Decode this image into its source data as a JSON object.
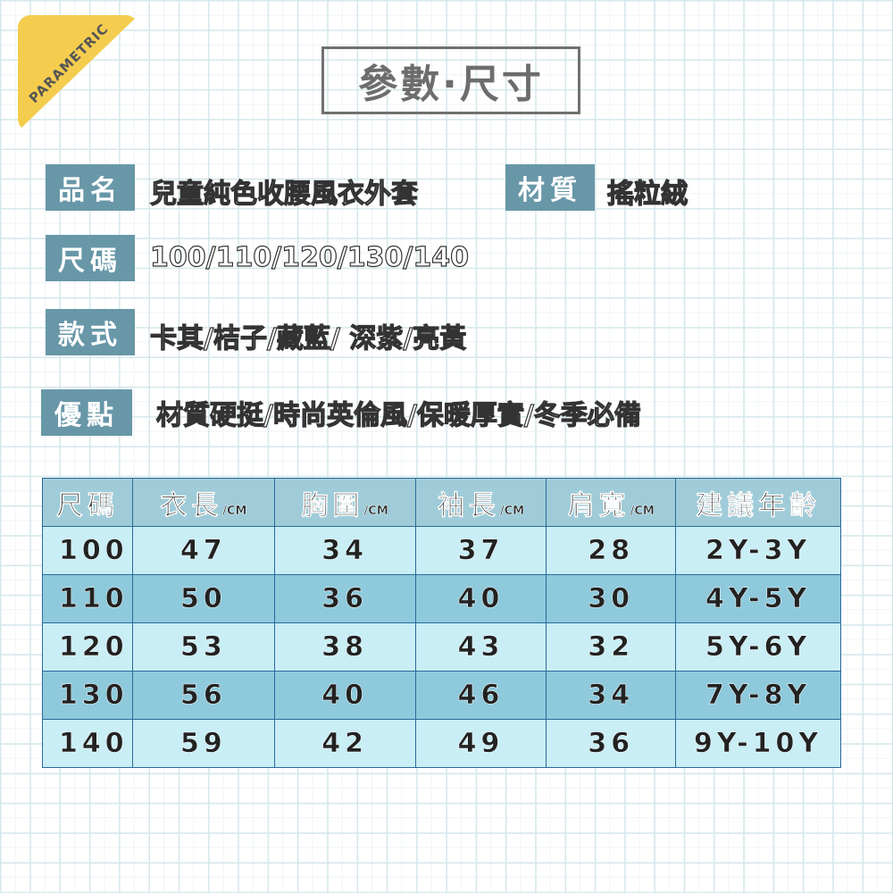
{
  "badge": "PARAMETRIC",
  "title": "參數·尺寸",
  "info": {
    "name_label": "品名",
    "name_value": "兒童純色收腰風衣外套",
    "material_label": "材質",
    "material_value": "搖粒絨",
    "size_label": "尺碼",
    "size_value": "100/110/120/130/140",
    "style_label": "款式",
    "style_value": "卡其/桔子/藏藍/ 深紫/亮黃",
    "merit_label": "優點",
    "merit_value": "材質硬挺/時尚英倫風/保暖厚實/冬季必備"
  },
  "table": {
    "headers": [
      {
        "t": "尺碼",
        "u": ""
      },
      {
        "t": "衣長",
        "u": "/CM"
      },
      {
        "t": "胸圍",
        "u": "/CM"
      },
      {
        "t": "袖長",
        "u": "/CM"
      },
      {
        "t": "肩寬",
        "u": "/CM"
      },
      {
        "t": "建議年齡",
        "u": ""
      }
    ],
    "rows": [
      [
        "100",
        "47",
        "34",
        "37",
        "28",
        "2Y-3Y"
      ],
      [
        "110",
        "50",
        "36",
        "40",
        "30",
        "4Y-5Y"
      ],
      [
        "120",
        "53",
        "38",
        "43",
        "32",
        "5Y-6Y"
      ],
      [
        "130",
        "56",
        "40",
        "46",
        "34",
        "7Y-8Y"
      ],
      [
        "140",
        "59",
        "42",
        "49",
        "36",
        "9Y-10Y"
      ]
    ]
  },
  "colors": {
    "badge": "#f4cd4f",
    "label_bg": "#6897a8",
    "header_bg": "#9fccd8",
    "row_light": "#c9eef6",
    "row_dark": "#8ecadc",
    "border": "#2a6a9a"
  }
}
